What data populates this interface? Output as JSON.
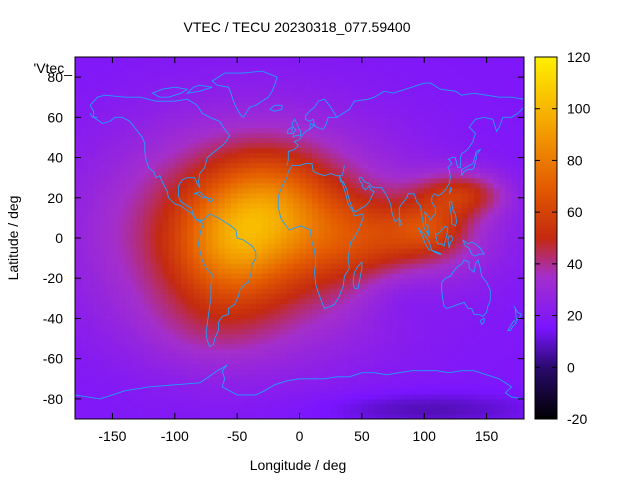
{
  "chart_data": {
    "type": "heatmap",
    "title": "VTEC / TECU 20230318_077.59400",
    "xlabel": "Longitude / deg",
    "ylabel": "Latitude / deg",
    "series_key": "'Vtec_",
    "xlim": [
      -180,
      180
    ],
    "ylim": [
      -90,
      90
    ],
    "x_ticks": [
      -150,
      -100,
      -50,
      0,
      50,
      100,
      150
    ],
    "y_ticks": [
      -80,
      -60,
      -40,
      -20,
      0,
      20,
      40,
      60,
      80
    ],
    "colorbar": {
      "range": [
        -20,
        120
      ],
      "ticks": [
        -20,
        0,
        20,
        40,
        60,
        80,
        100,
        120
      ],
      "stops": [
        {
          "v": -20,
          "c": "#000000"
        },
        {
          "v": 0,
          "c": "#2a0a6e"
        },
        {
          "v": 15,
          "c": "#7a14ff"
        },
        {
          "v": 35,
          "c": "#a42fcc"
        },
        {
          "v": 50,
          "c": "#c42a10"
        },
        {
          "v": 70,
          "c": "#e45c00"
        },
        {
          "v": 95,
          "c": "#f5a800"
        },
        {
          "v": 120,
          "c": "#fff000"
        }
      ]
    },
    "field": {
      "background_tecu": 17,
      "blobs": [
        {
          "lon": -40,
          "lat": 2,
          "slon": 85,
          "slat": 38,
          "amp": 40
        },
        {
          "lon": -55,
          "lat": -5,
          "slon": 30,
          "slat": 18,
          "amp": 28
        },
        {
          "lon": -25,
          "lat": 18,
          "slon": 35,
          "slat": 18,
          "amp": 30
        },
        {
          "lon": 70,
          "lat": 0,
          "slon": 55,
          "slat": 15,
          "amp": 26
        },
        {
          "lon": 130,
          "lat": 22,
          "slon": 25,
          "slat": 8,
          "amp": 30
        },
        {
          "lon": 105,
          "lat": 5,
          "slon": 20,
          "slat": 8,
          "amp": 18
        },
        {
          "lon": 80,
          "lat": -25,
          "slon": 25,
          "slat": 12,
          "amp": -8
        },
        {
          "lon": -70,
          "lat": -45,
          "slon": 40,
          "slat": 15,
          "amp": 8
        },
        {
          "lon": 100,
          "lat": -85,
          "slon": 60,
          "slat": 6,
          "amp": -10
        }
      ]
    },
    "coastline_color": "#1fa0ff"
  }
}
